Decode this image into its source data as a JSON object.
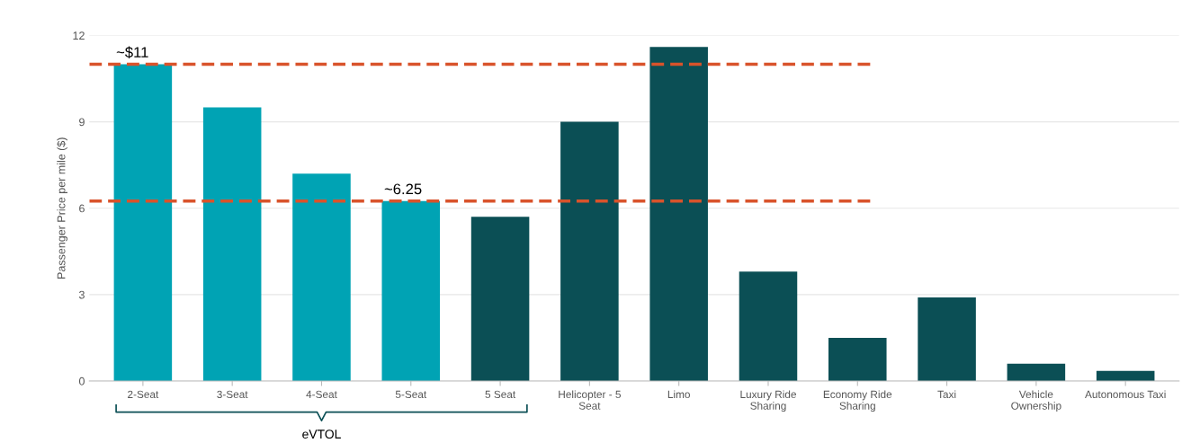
{
  "chart_data": {
    "type": "bar",
    "ylabel": "Passenger Price per mile ($)",
    "categories": [
      "2-Seat",
      "3-Seat",
      "4-Seat",
      "5-Seat",
      "5 Seat",
      "Helicopter - 5\nSeat",
      "Limo",
      "Luxury Ride\nSharing",
      "Economy Ride\nSharing",
      "Taxi",
      "Vehicle\nOwnership",
      "Autonomous Taxi"
    ],
    "values": [
      11,
      9.5,
      7.2,
      6.25,
      5.7,
      9,
      11.6,
      3.8,
      1.5,
      2.9,
      0.6,
      0.35
    ],
    "colors": [
      "#00a3b4",
      "#00a3b4",
      "#00a3b4",
      "#00a3b4",
      "#0b4f55",
      "#0b4f55",
      "#0b4f55",
      "#0b4f55",
      "#0b4f55",
      "#0b4f55",
      "#0b4f55",
      "#0b4f55"
    ],
    "ylim": [
      0,
      12
    ],
    "yticks": [
      0,
      3,
      6,
      9,
      12
    ],
    "grid": "y",
    "ref_lines": [
      {
        "axis": "y",
        "value": 11,
        "color": "#d9532b",
        "line_style": "dashed"
      },
      {
        "axis": "y",
        "value": 6.25,
        "color": "#d9532b",
        "line_style": "dashed"
      }
    ],
    "annotations": [
      {
        "text": "~$11",
        "x": "2-Seat",
        "y": 11
      },
      {
        "text": "~6.25",
        "x": "5-Seat",
        "y": 6.25
      },
      "eVTOL"
    ]
  }
}
